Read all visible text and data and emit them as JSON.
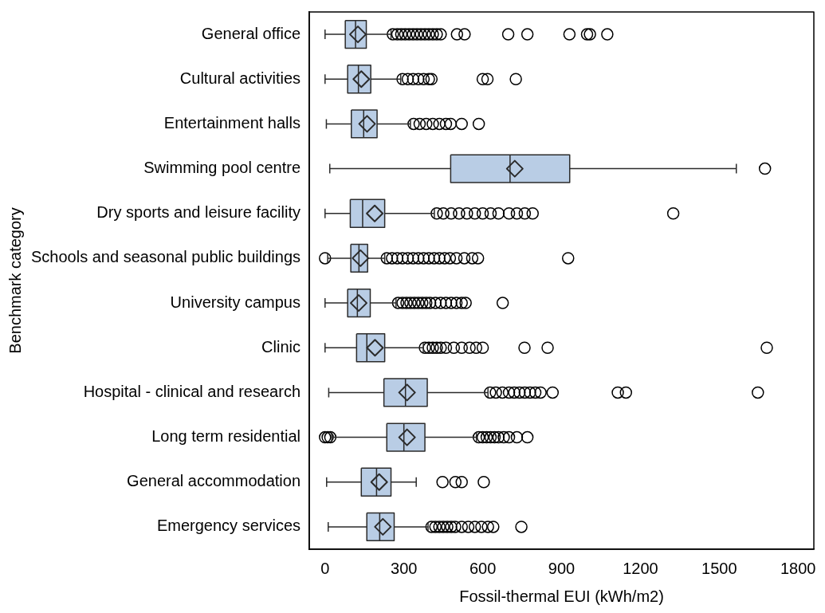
{
  "chart_data": {
    "type": "box",
    "orientation": "horizontal",
    "xlabel": "Fossil-thermal EUI (kWh/m2)",
    "ylabel": "Benchmark category",
    "categories": [
      "General office",
      "Cultural activities",
      "Entertainment halls",
      "Swimming pool centre",
      "Dry sports and leisure facility",
      "Schools and seasonal public buildings",
      "University campus",
      "Clinic",
      "Hospital - clinical and research",
      "Long term residential",
      "General accommodation",
      "Emergency services"
    ],
    "color": "#b9cde5",
    "boxes": [
      {
        "low": 0,
        "q1": 77,
        "median": 116,
        "q3": 157,
        "high": 251,
        "mean": 125,
        "outliers": [
          258,
          275,
          290,
          305,
          320,
          335,
          350,
          365,
          380,
          395,
          410,
          425,
          440,
          502,
          531,
          697,
          770,
          930,
          997,
          1008,
          1074
        ]
      },
      {
        "low": 0,
        "q1": 86,
        "median": 127,
        "q3": 174,
        "high": 288,
        "mean": 138,
        "outliers": [
          295,
          315,
          335,
          355,
          375,
          395,
          405,
          600,
          618,
          726
        ]
      },
      {
        "low": 5,
        "q1": 100,
        "median": 147,
        "q3": 198,
        "high": 325,
        "mean": 160,
        "outliers": [
          337,
          360,
          385,
          410,
          435,
          460,
          478,
          520,
          585
        ]
      },
      {
        "low": 18,
        "q1": 478,
        "median": 704,
        "q3": 931,
        "high": 1565,
        "mean": 722,
        "outliers": [
          1674
        ]
      },
      {
        "low": 0,
        "q1": 96,
        "median": 143,
        "q3": 227,
        "high": 416,
        "mean": 189,
        "outliers": [
          425,
          450,
          480,
          510,
          540,
          570,
          600,
          630,
          660,
          700,
          730,
          760,
          790,
          1325
        ]
      },
      {
        "low": 10,
        "q1": 98,
        "median": 129,
        "q3": 162,
        "high": 227,
        "mean": 135,
        "outliers": [
          0,
          235,
          255,
          275,
          295,
          315,
          335,
          355,
          375,
          395,
          415,
          435,
          455,
          475,
          500,
          530,
          560,
          582,
          925
        ]
      },
      {
        "low": 0,
        "q1": 86,
        "median": 123,
        "q3": 172,
        "high": 270,
        "mean": 128,
        "outliers": [
          278,
          295,
          310,
          325,
          340,
          355,
          370,
          385,
          400,
          420,
          440,
          460,
          480,
          500,
          520,
          535,
          676
        ]
      },
      {
        "low": 0,
        "q1": 120,
        "median": 159,
        "q3": 227,
        "high": 374,
        "mean": 190,
        "outliers": [
          380,
          395,
          410,
          425,
          440,
          460,
          490,
          520,
          550,
          575,
          600,
          759,
          847,
          1681
        ]
      },
      {
        "low": 14,
        "q1": 224,
        "median": 306,
        "q3": 389,
        "high": 620,
        "mean": 312,
        "outliers": [
          628,
          650,
          675,
          700,
          720,
          740,
          760,
          780,
          800,
          820,
          866,
          1114,
          1145,
          1647
        ]
      },
      {
        "low": 25,
        "q1": 235,
        "median": 300,
        "q3": 380,
        "high": 576,
        "mean": 312,
        "outliers": [
          0,
          10,
          20,
          585,
          600,
          615,
          630,
          645,
          660,
          680,
          700,
          730,
          770
        ]
      },
      {
        "low": 6,
        "q1": 138,
        "median": 196,
        "q3": 251,
        "high": 347,
        "mean": 206,
        "outliers": [
          447,
          496,
          520,
          604
        ]
      },
      {
        "low": 12,
        "q1": 159,
        "median": 208,
        "q3": 263,
        "high": 392,
        "mean": 220,
        "outliers": [
          405,
          420,
          435,
          450,
          465,
          480,
          495,
          520,
          545,
          570,
          595,
          620,
          640,
          747
        ]
      }
    ],
    "xlim": [
      -60,
      1860
    ],
    "xticks": [
      0,
      300,
      600,
      900,
      1200,
      1500,
      1800
    ],
    "grid": false,
    "legend": false
  }
}
